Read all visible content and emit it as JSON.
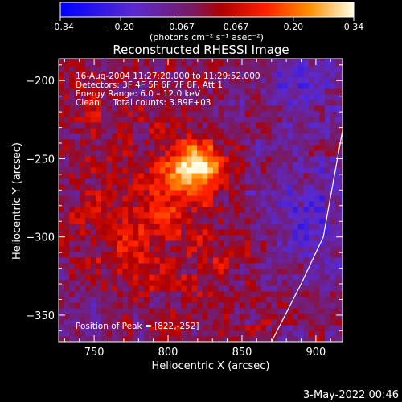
{
  "chart_data": {
    "type": "heatmap",
    "title": "Reconstructed RHESSI Image",
    "xlabel": "Heliocentric X (arcsec)",
    "ylabel": "Heliocentric Y (arcsec)",
    "xlim": [
      726,
      918
    ],
    "ylim": [
      -367,
      -186
    ],
    "x_ticks": [
      750,
      800,
      850,
      900
    ],
    "y_ticks": [
      -200,
      -250,
      -300,
      -350
    ],
    "colorbar": {
      "min": -0.34,
      "max": 0.34,
      "tick_values": [
        -0.34,
        -0.2,
        -0.067,
        0.067,
        0.2,
        0.34
      ],
      "tick_labels": [
        "−0.34",
        "−0.20",
        "−0.067",
        "0.067",
        "0.20",
        "0.34"
      ],
      "label": "(photons cm⁻² s⁻¹ asec⁻²)",
      "colormap": "rainbow-like: blue-purple to red to yellow-white"
    },
    "annotations": [
      "16-Aug-2004 11:27:20.000 to 11:29:52.000",
      "Detectors: 3F 4F 5F 6F 7F 8F, Att 1",
      "Energy Range: 6.0 – 12.0 keV",
      "Clean     Total counts: 3.89E+03"
    ],
    "peak": {
      "label": "Position of Peak = [822,-252]",
      "x": 822,
      "y": -252
    },
    "sources": [
      {
        "x": 820,
        "y": -255,
        "amplitude": 0.34,
        "sigma": 11
      },
      {
        "x": 800,
        "y": -265,
        "amplitude": 0.14,
        "sigma": 14
      },
      {
        "x": 770,
        "y": -300,
        "amplitude": 0.1,
        "sigma": 22
      },
      {
        "x": 830,
        "y": -305,
        "amplitude": 0.08,
        "sigma": 20
      },
      {
        "x": 750,
        "y": -210,
        "amplitude": 0.05,
        "sigma": 18
      },
      {
        "x": 890,
        "y": -200,
        "amplitude": -0.1,
        "sigma": 25
      },
      {
        "x": 900,
        "y": -290,
        "amplitude": -0.12,
        "sigma": 30
      },
      {
        "x": 745,
        "y": -355,
        "amplitude": -0.06,
        "sigma": 20
      }
    ],
    "limb_curve": [
      [
        870,
        -367
      ],
      [
        890,
        -330
      ],
      [
        905,
        -300
      ],
      [
        918,
        -232
      ]
    ],
    "grid": false
  },
  "timestamp": "3-May-2022 00:46"
}
